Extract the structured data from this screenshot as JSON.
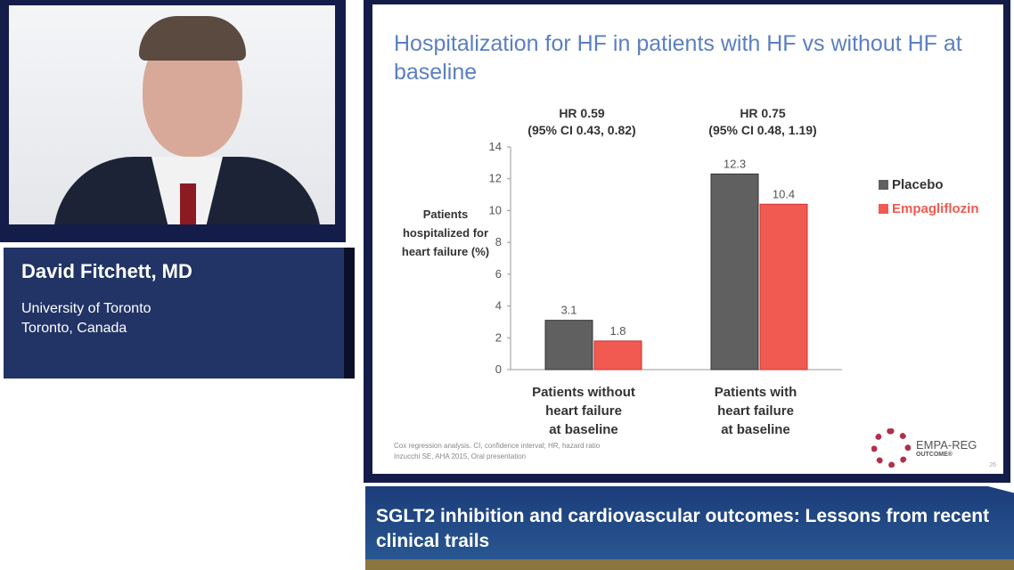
{
  "speaker": {
    "name": "David Fitchett, MD",
    "affiliation": "University of Toronto",
    "location": "Toronto, Canada"
  },
  "slide": {
    "title": "Hospitalization for HF in patients with HF vs without HF at baseline",
    "footnote1": "Cox regression analysis. CI, confidence interval; HR, hazard ratio",
    "footnote2": "Inzucchi SE, AHA 2015, Oral presentation",
    "logo_text": "EMPA-REG",
    "logo_sub": "OUTCOME®",
    "page_number": "26"
  },
  "banner": {
    "title": "SGLT2 inhibition and cardiovascular outcomes: Lessons from recent clinical trails"
  },
  "chart_data": {
    "type": "bar",
    "ylabel": "Patients hospitalized for heart failure (%)",
    "ylim": [
      0,
      14
    ],
    "yticks": [
      "0",
      "2",
      "4",
      "6",
      "8",
      "10",
      "12",
      "14"
    ],
    "categories": [
      "Patients without heart failure at baseline",
      "Patients with heart failure at baseline"
    ],
    "category_lines": [
      [
        "Patients without",
        "heart failure",
        "at baseline"
      ],
      [
        "Patients with",
        "heart failure",
        "at baseline"
      ]
    ],
    "annotations": [
      {
        "hr": "HR 0.59",
        "ci": "(95% CI 0.43, 0.82)"
      },
      {
        "hr": "HR 0.75",
        "ci": "(95% CI 0.48, 1.19)"
      }
    ],
    "series": [
      {
        "name": "Placebo",
        "values": [
          3.1,
          12.3
        ],
        "labels": [
          "3.1",
          "12.3"
        ],
        "color": "#606060"
      },
      {
        "name": "Empagliflozin",
        "values": [
          1.8,
          10.4
        ],
        "labels": [
          "1.8",
          "10.4"
        ],
        "color": "#f05a50"
      }
    ],
    "legend": "right",
    "grid": false
  }
}
